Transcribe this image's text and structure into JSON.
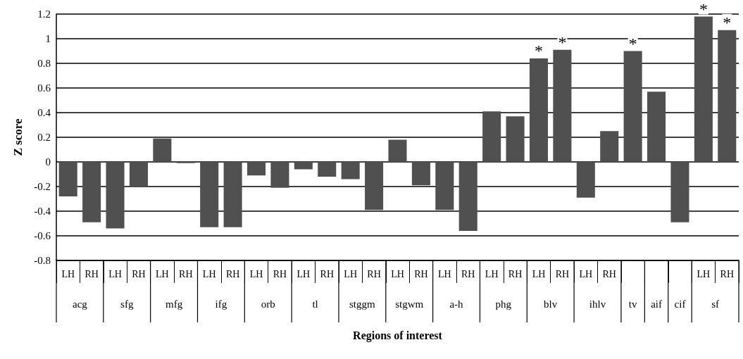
{
  "chart_data": {
    "type": "bar",
    "ylabel": "Z score",
    "xlabel": "Regions of interest",
    "categories": [
      "LH",
      "RH",
      "LH",
      "RH",
      "LH",
      "RH",
      "LH",
      "RH",
      "LH",
      "RH",
      "LH",
      "RH",
      "LH",
      "RH",
      "LH",
      "RH",
      "LH",
      "RH",
      "LH",
      "RH",
      "LH",
      "RH",
      "LH",
      "RH",
      null,
      null,
      null,
      "LH",
      "RH"
    ],
    "values": [
      -0.28,
      -0.49,
      -0.54,
      -0.2,
      0.19,
      -0.01,
      -0.53,
      -0.53,
      -0.11,
      -0.21,
      -0.06,
      -0.12,
      -0.14,
      -0.39,
      0.18,
      -0.19,
      -0.39,
      -0.56,
      0.41,
      0.37,
      0.84,
      0.91,
      -0.29,
      0.25,
      0.9,
      0.57,
      -0.49,
      1.18,
      1.07
    ],
    "value_labels": [
      null,
      null,
      null,
      null,
      null,
      null,
      null,
      null,
      null,
      null,
      null,
      null,
      null,
      null,
      null,
      null,
      null,
      null,
      null,
      null,
      "*",
      "*",
      null,
      null,
      "*",
      null,
      null,
      "*",
      "*"
    ],
    "annotations": [
      "acg",
      "sfg",
      "mfg",
      "ifg",
      "orb",
      "tl",
      "stggm",
      "stgwm",
      "a-h",
      "phg",
      "blv",
      "ihlv",
      "tv",
      "aif",
      "cif",
      "sf"
    ],
    "color": "#505050",
    "ylim": [
      -0.8,
      1.2
    ],
    "yticks": [
      -0.8,
      -0.6,
      -0.4,
      -0.2,
      0,
      0.2,
      0.4,
      0.6,
      0.8,
      1,
      1.2
    ],
    "grid": "y"
  }
}
